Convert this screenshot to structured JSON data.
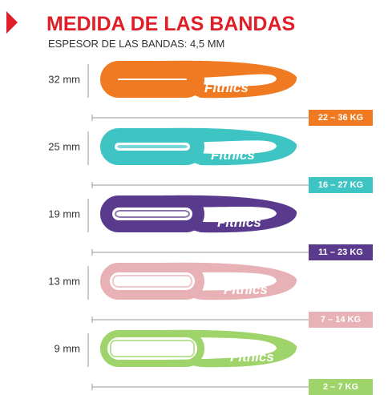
{
  "header": {
    "title": "MEDIDA DE LAS BANDAS",
    "subtitle": "ESPESOR DE LAS BANDAS: 4,5 MM"
  },
  "bands": [
    {
      "width": "32 mm",
      "brand": "Fitnics",
      "weight": "22 – 36 KG",
      "color": "#f07a22"
    },
    {
      "width": "25 mm",
      "brand": "Fitnics",
      "weight": "16 – 27 KG",
      "color": "#3fc4c4"
    },
    {
      "width": "19 mm",
      "brand": "Fitnics",
      "weight": "11 – 23 KG",
      "color": "#5a3a8c"
    },
    {
      "width": "13 mm",
      "brand": "Fitnics",
      "weight": "7 – 14 KG",
      "color": "#e7b1b6"
    },
    {
      "width": "9 mm",
      "brand": "Fitnics",
      "weight": "2 – 7 KG",
      "color": "#9ed46a"
    }
  ]
}
